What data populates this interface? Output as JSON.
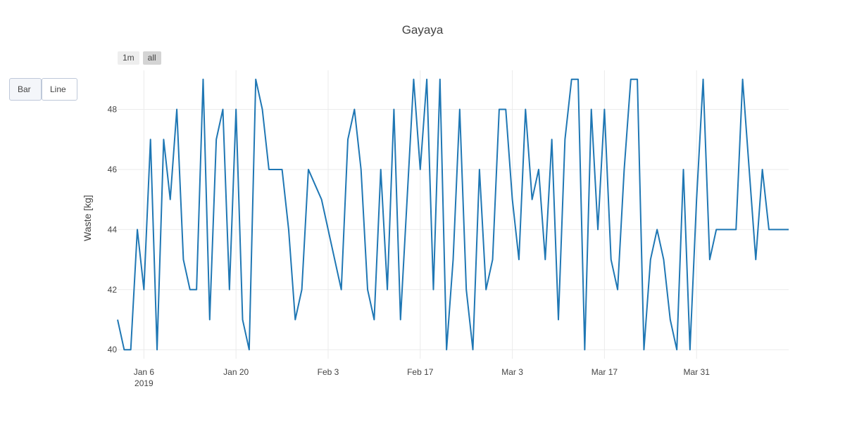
{
  "chart_data": {
    "type": "line",
    "title": "Gayaya",
    "xlabel": "",
    "ylabel": "Waste [kg]",
    "ylim": [
      39.7,
      49.3
    ],
    "xlim": [
      "2019-01-02",
      "2019-04-14"
    ],
    "yticks": [
      40,
      42,
      44,
      46,
      48
    ],
    "xticks": [
      {
        "date": "2019-01-06",
        "label": "Jan 6",
        "sub": "2019"
      },
      {
        "date": "2019-01-20",
        "label": "Jan 20",
        "sub": ""
      },
      {
        "date": "2019-02-03",
        "label": "Feb 3",
        "sub": ""
      },
      {
        "date": "2019-02-17",
        "label": "Feb 17",
        "sub": ""
      },
      {
        "date": "2019-03-03",
        "label": "Mar 3",
        "sub": ""
      },
      {
        "date": "2019-03-17",
        "label": "Mar 17",
        "sub": ""
      },
      {
        "date": "2019-03-31",
        "label": "Mar 31",
        "sub": ""
      }
    ],
    "grid": true,
    "color": "#1f77b4",
    "series": [
      {
        "x": [
          "2019-01-02",
          "2019-01-03",
          "2019-01-04",
          "2019-01-05",
          "2019-01-06",
          "2019-01-07",
          "2019-01-08",
          "2019-01-09",
          "2019-01-10",
          "2019-01-11",
          "2019-01-12",
          "2019-01-13",
          "2019-01-14",
          "2019-01-15",
          "2019-01-16",
          "2019-01-17",
          "2019-01-18",
          "2019-01-19",
          "2019-01-20",
          "2019-01-21",
          "2019-01-22",
          "2019-01-23",
          "2019-01-24",
          "2019-01-25",
          "2019-01-26",
          "2019-01-27",
          "2019-01-28",
          "2019-01-29",
          "2019-01-30",
          "2019-01-31",
          "2019-02-01",
          "2019-02-02",
          "2019-02-03",
          "2019-02-04",
          "2019-02-05",
          "2019-02-06",
          "2019-02-07",
          "2019-02-08",
          "2019-02-09",
          "2019-02-10",
          "2019-02-11",
          "2019-02-12",
          "2019-02-13",
          "2019-02-14",
          "2019-02-15",
          "2019-02-16",
          "2019-02-17",
          "2019-02-18",
          "2019-02-19",
          "2019-02-20",
          "2019-02-21",
          "2019-02-22",
          "2019-02-23",
          "2019-02-24",
          "2019-02-25",
          "2019-02-26",
          "2019-02-27",
          "2019-02-28",
          "2019-03-01",
          "2019-03-02",
          "2019-03-03",
          "2019-03-04",
          "2019-03-05",
          "2019-03-06",
          "2019-03-07",
          "2019-03-08",
          "2019-03-09",
          "2019-03-10",
          "2019-03-11",
          "2019-03-12",
          "2019-03-13",
          "2019-03-14",
          "2019-03-15",
          "2019-03-16",
          "2019-03-17",
          "2019-03-18",
          "2019-03-19",
          "2019-03-20",
          "2019-03-21",
          "2019-03-22",
          "2019-03-23",
          "2019-03-24",
          "2019-03-25",
          "2019-03-26",
          "2019-03-27",
          "2019-03-28",
          "2019-03-29",
          "2019-03-30",
          "2019-03-31",
          "2019-04-01",
          "2019-04-02",
          "2019-04-03",
          "2019-04-04",
          "2019-04-05",
          "2019-04-06",
          "2019-04-07",
          "2019-04-08",
          "2019-04-09",
          "2019-04-10",
          "2019-04-11",
          "2019-04-12",
          "2019-04-13",
          "2019-04-14"
        ],
        "y": [
          41,
          40,
          40,
          44,
          42,
          47,
          40,
          47,
          45,
          48,
          43,
          42,
          42,
          49,
          41,
          47,
          48,
          42,
          48,
          41,
          40,
          49,
          48,
          46,
          46,
          46,
          44,
          41,
          42,
          46,
          45.5,
          45,
          44,
          43,
          42,
          47,
          48,
          46,
          42,
          41,
          46,
          42,
          48,
          41,
          45,
          49,
          46,
          49,
          42,
          49,
          40,
          43,
          48,
          42,
          40,
          46,
          42,
          43,
          48,
          48,
          45,
          43,
          48,
          45,
          46,
          43,
          47,
          41,
          47,
          49,
          49,
          40,
          48,
          44,
          48,
          43,
          42,
          46,
          49,
          49,
          40,
          43,
          44,
          43,
          41,
          40,
          46,
          40,
          45,
          49,
          43,
          44,
          44,
          44,
          44,
          49,
          46,
          43,
          46,
          44,
          44,
          44,
          44
        ]
      }
    ]
  },
  "controls": {
    "range_buttons": [
      {
        "label": "1m",
        "active": false
      },
      {
        "label": "all",
        "active": true
      }
    ],
    "type_buttons": [
      {
        "label": "Bar"
      },
      {
        "label": "Line"
      }
    ]
  }
}
